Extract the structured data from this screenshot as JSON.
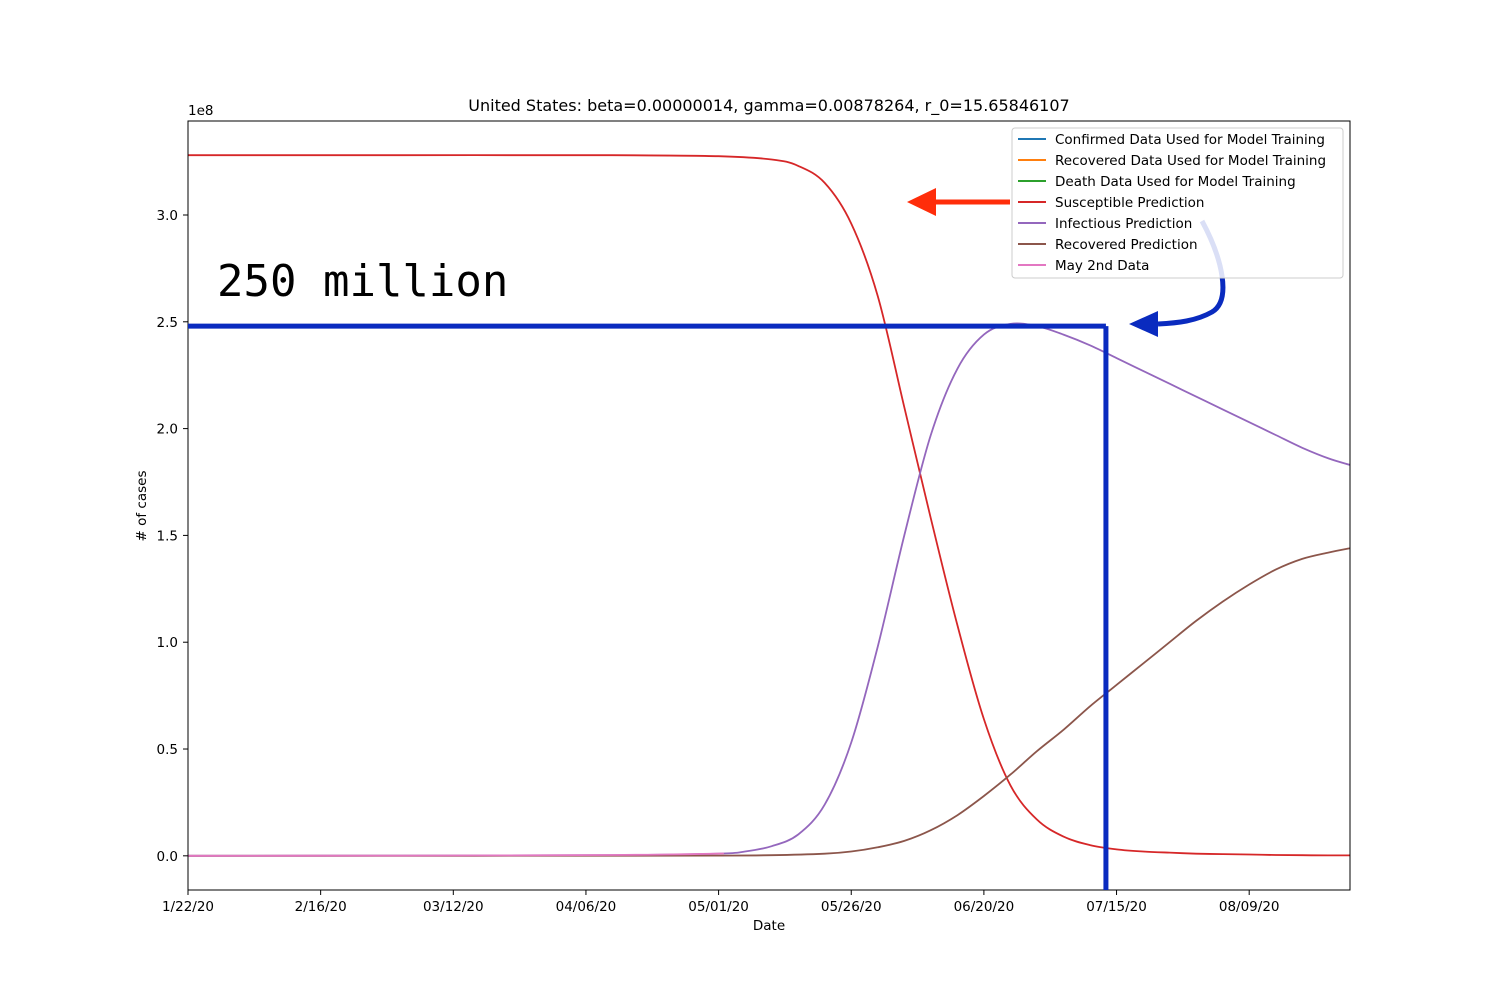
{
  "chart_data": {
    "type": "line",
    "title": "United States: beta=0.00000014, gamma=0.00878264, r_0=15.65846107",
    "xlabel": "Date",
    "ylabel": "# of cases",
    "y_offset_label": "1e8",
    "x_tick_labels": [
      "1/22/20",
      "2/16/20",
      "03/12/20",
      "04/06/20",
      "05/01/20",
      "05/26/20",
      "06/20/20",
      "07/15/20",
      "08/09/20"
    ],
    "x_range_days": [
      0,
      219
    ],
    "y_tick_labels": [
      "0.0",
      "0.5",
      "1.0",
      "1.5",
      "2.0",
      "2.5",
      "3.0"
    ],
    "y_ticks": [
      0,
      0.5,
      1.0,
      1.5,
      2.0,
      2.5,
      3.0
    ],
    "ylim": [
      -0.16,
      3.44
    ],
    "y_unit": "1e8",
    "grid": false,
    "legend_position": "top-right",
    "legend": [
      {
        "name": "Confirmed Data Used for Model Training",
        "color": "#1f77b4"
      },
      {
        "name": "Recovered Data Used for Model Training",
        "color": "#ff7f0e"
      },
      {
        "name": "Death Data Used for Model Training",
        "color": "#2ca02c"
      },
      {
        "name": "Susceptible Prediction",
        "color": "#d62728"
      },
      {
        "name": "Infectious Prediction",
        "color": "#9467bd"
      },
      {
        "name": "Recovered Prediction",
        "color": "#8c564b"
      },
      {
        "name": "May 2nd Data",
        "color": "#e377c2"
      }
    ],
    "series": [
      {
        "name": "Susceptible Prediction",
        "color": "#d62728",
        "x": [
          0,
          40,
          80,
          100,
          110,
          115,
          120,
          125,
          130,
          135,
          140,
          145,
          150,
          155,
          160,
          165,
          170,
          175,
          180,
          185,
          190,
          195,
          200,
          205,
          210,
          215,
          219
        ],
        "y": [
          3.28,
          3.28,
          3.28,
          3.275,
          3.26,
          3.23,
          3.15,
          2.96,
          2.62,
          2.1,
          1.58,
          1.08,
          0.64,
          0.33,
          0.17,
          0.09,
          0.05,
          0.03,
          0.02,
          0.015,
          0.01,
          0.008,
          0.006,
          0.004,
          0.003,
          0.002,
          0.002
        ]
      },
      {
        "name": "Infectious Prediction",
        "color": "#9467bd",
        "x": [
          0,
          40,
          80,
          100,
          105,
          110,
          115,
          120,
          125,
          130,
          135,
          140,
          145,
          150,
          155,
          160,
          165,
          170,
          175,
          180,
          185,
          190,
          195,
          200,
          205,
          210,
          215,
          219
        ],
        "y": [
          0,
          0.001,
          0.003,
          0.01,
          0.02,
          0.045,
          0.1,
          0.24,
          0.53,
          0.98,
          1.5,
          1.97,
          2.28,
          2.44,
          2.49,
          2.48,
          2.44,
          2.39,
          2.33,
          2.27,
          2.21,
          2.15,
          2.09,
          2.03,
          1.97,
          1.91,
          1.86,
          1.83
        ]
      },
      {
        "name": "Recovered Prediction",
        "color": "#8c564b",
        "x": [
          0,
          40,
          80,
          100,
          110,
          120,
          125,
          130,
          135,
          140,
          145,
          150,
          155,
          160,
          165,
          170,
          175,
          180,
          185,
          190,
          195,
          200,
          205,
          210,
          215,
          219
        ],
        "y": [
          0,
          0,
          0.0005,
          0.001,
          0.003,
          0.01,
          0.02,
          0.04,
          0.07,
          0.12,
          0.19,
          0.28,
          0.38,
          0.49,
          0.59,
          0.7,
          0.8,
          0.9,
          1.0,
          1.1,
          1.19,
          1.27,
          1.34,
          1.39,
          1.42,
          1.44
        ]
      },
      {
        "name": "May 2nd Data",
        "color": "#e377c2",
        "x": [
          0,
          20,
          40,
          60,
          80,
          90,
          101
        ],
        "y": [
          0,
          0.0005,
          0.001,
          0.002,
          0.004,
          0.006,
          0.011
        ]
      }
    ],
    "annotations": {
      "label": "250 million",
      "hline_y": 2.48,
      "vline_x": 173
    }
  }
}
